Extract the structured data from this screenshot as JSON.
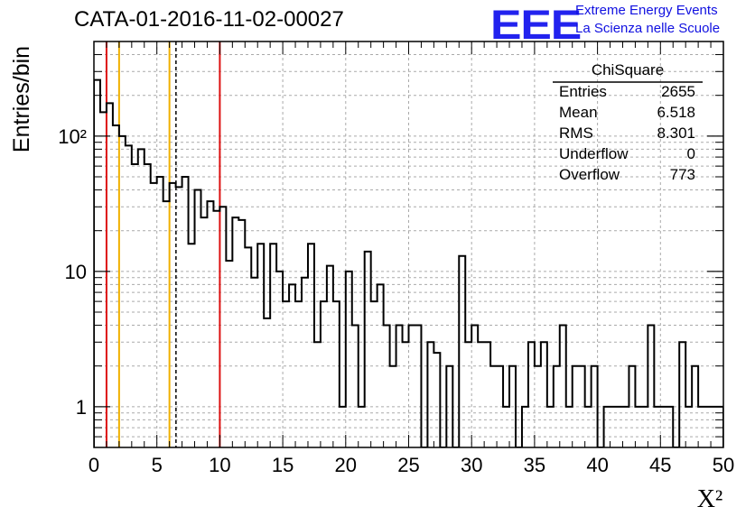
{
  "header": {
    "title": "CATA-01-2016-11-02-00027",
    "logo_text": "EEE",
    "logo_line1": "Extreme Energy Events",
    "logo_line2": "La Scienza nelle Scuole",
    "logo_color": "#1a1aee"
  },
  "stats": {
    "name": "ChiSquare",
    "rows": [
      {
        "label": "Entries",
        "value": "2655"
      },
      {
        "label": "Mean",
        "value": "6.518"
      },
      {
        "label": "RMS",
        "value": "8.301"
      },
      {
        "label": "Underflow",
        "value": "0"
      },
      {
        "label": "Overflow",
        "value": "773"
      }
    ]
  },
  "chart_data": {
    "type": "histogram",
    "title": "CATA-01-2016-11-02-00027",
    "xlabel": "X²",
    "ylabel": "Entries/bin",
    "xlim": [
      0,
      50
    ],
    "ylim": [
      0.5,
      500
    ],
    "yscale": "log",
    "bin_width": 0.5,
    "x_ticks": [
      0,
      5,
      10,
      15,
      20,
      25,
      30,
      35,
      40,
      45,
      50
    ],
    "y_tick_labels": [
      {
        "value": 1,
        "label": "1"
      },
      {
        "value": 10,
        "label": "10"
      },
      {
        "value": 100,
        "label": "10²"
      }
    ],
    "grid": true,
    "counts": [
      260,
      150,
      175,
      120,
      100,
      85,
      62,
      80,
      62,
      45,
      50,
      33,
      45,
      42,
      50,
      16,
      40,
      25,
      33,
      28,
      30,
      12,
      25,
      24,
      15,
      9,
      16,
      4.5,
      16,
      10,
      6,
      8,
      6,
      9,
      16,
      3,
      6,
      11,
      6,
      1,
      10,
      4,
      1,
      14,
      6,
      8,
      4,
      2,
      4,
      3,
      4,
      4,
      0,
      3,
      2.5,
      0,
      2,
      0,
      13,
      3,
      4,
      3,
      3,
      2,
      2,
      1,
      2,
      0,
      1,
      3,
      2,
      3,
      1,
      2,
      4,
      1,
      2,
      2,
      1,
      2,
      0,
      1,
      1,
      1,
      1,
      2,
      1,
      1,
      4,
      1,
      1,
      1,
      0,
      3,
      1,
      2,
      1,
      1,
      1,
      1
    ],
    "vertical_lines": [
      {
        "x": 1,
        "color": "#dd1111",
        "style": "solid"
      },
      {
        "x": 2,
        "color": "#f0b000",
        "style": "solid"
      },
      {
        "x": 6,
        "color": "#f0b000",
        "style": "solid"
      },
      {
        "x": 6.518,
        "color": "#000000",
        "style": "dashed"
      },
      {
        "x": 10,
        "color": "#dd1111",
        "style": "solid"
      }
    ]
  }
}
